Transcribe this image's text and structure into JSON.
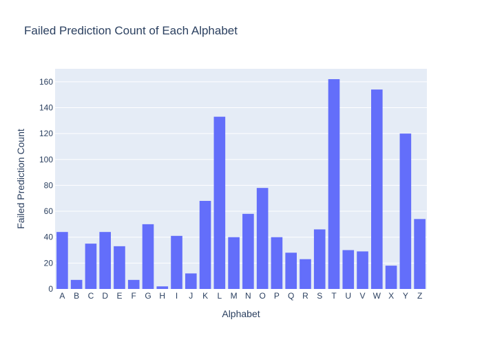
{
  "chart_data": {
    "type": "bar",
    "title": "Failed Prediction Count of Each Alphabet",
    "xlabel": "Alphabet",
    "ylabel": "Failed Prediction Count",
    "ylim": [
      0,
      170
    ],
    "yticks": [
      0,
      20,
      40,
      60,
      80,
      100,
      120,
      140,
      160
    ],
    "grid": true,
    "legend": "none",
    "categories": [
      "A",
      "B",
      "C",
      "D",
      "E",
      "F",
      "G",
      "H",
      "I",
      "J",
      "K",
      "L",
      "M",
      "N",
      "O",
      "P",
      "Q",
      "R",
      "S",
      "T",
      "U",
      "V",
      "W",
      "X",
      "Y",
      "Z"
    ],
    "values": [
      44,
      7,
      35,
      44,
      33,
      7,
      50,
      2,
      41,
      12,
      68,
      133,
      40,
      58,
      78,
      40,
      28,
      23,
      46,
      162,
      30,
      29,
      154,
      18,
      120,
      54
    ],
    "colors": {
      "bar": "#636efa",
      "plot_bg": "#e5ecf6",
      "grid": "#ffffff",
      "text": "#2a3f5f"
    }
  }
}
